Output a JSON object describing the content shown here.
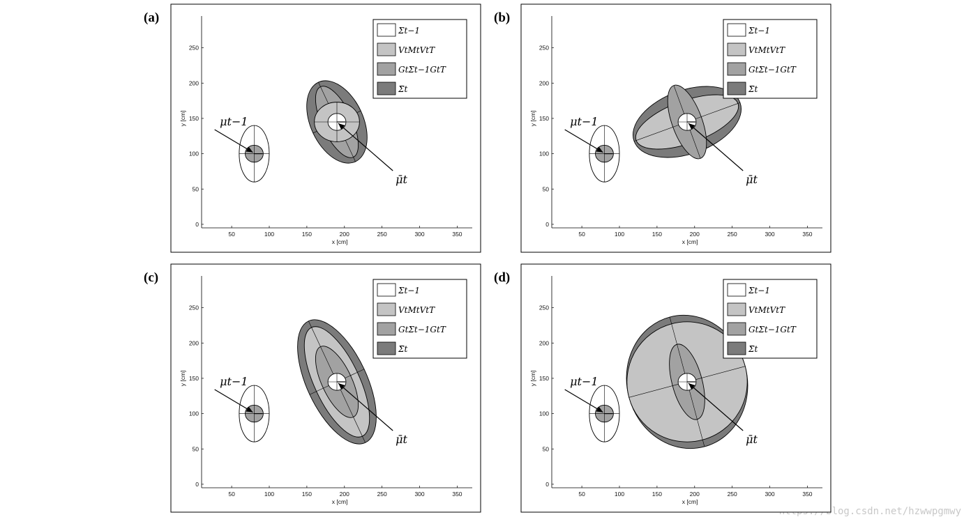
{
  "legend_entries": [
    "Σt−1",
    "VtMtVtT",
    "GtΣt−1GtT",
    "Σ̄t"
  ],
  "colors": {
    "sigma_prev": "#ffffff",
    "motion_noise": "#c4c4c4",
    "propagated": "#a2a2a2",
    "sigma_bar": "#7b7b7b",
    "frame": "#000000"
  },
  "watermark": "https://blog.csdn.net/hzwwpgmwy",
  "chart_data": [
    {
      "panel": "(a)",
      "type": "scatter",
      "xlabel": "x [cm]",
      "ylabel": "y [cm]",
      "xlim": [
        10,
        370
      ],
      "ylim": [
        -5,
        295
      ],
      "xticks": [
        50,
        100,
        150,
        200,
        250,
        300,
        350
      ],
      "yticks": [
        0,
        50,
        100,
        150,
        200,
        250
      ],
      "legend": "top-right",
      "mu_prev_label": "μt−1",
      "mu_bar_label": "μ̄t",
      "mu_prev": [
        80,
        100
      ],
      "mu_bar": [
        190,
        145
      ],
      "ellipses": [
        {
          "name": "Σt−1",
          "center": [
            80,
            100
          ],
          "rx": 20,
          "ry": 40,
          "angle": 0
        },
        {
          "name": "Σ̄t",
          "center": [
            190,
            145
          ],
          "rx": 35,
          "ry": 62,
          "angle": -25
        },
        {
          "name": "GtΣt−1GtT",
          "center": [
            190,
            145
          ],
          "rx": 20,
          "ry": 55,
          "angle": -25
        },
        {
          "name": "VtMtVtT",
          "center": [
            190,
            145
          ],
          "rx": 30,
          "ry": 28,
          "angle": 0
        },
        {
          "name": "Σt−1 propagated (inner)",
          "center": [
            190,
            145
          ],
          "rx": 12,
          "ry": 12,
          "angle": 0
        },
        {
          "name": "Σt−1 (inner)",
          "center": [
            80,
            100
          ],
          "rx": 12,
          "ry": 12,
          "angle": 0
        }
      ]
    },
    {
      "panel": "(b)",
      "type": "scatter",
      "xlabel": "x [cm]",
      "ylabel": "y [cm]",
      "xlim": [
        10,
        370
      ],
      "ylim": [
        -5,
        295
      ],
      "xticks": [
        50,
        100,
        150,
        200,
        250,
        300,
        350
      ],
      "yticks": [
        0,
        50,
        100,
        150,
        200,
        250
      ],
      "legend": "top-right",
      "mu_prev_label": "μt−1",
      "mu_bar_label": "μ̄t",
      "mu_prev": [
        80,
        100
      ],
      "mu_bar": [
        190,
        145
      ],
      "ellipses": [
        {
          "name": "Σt−1",
          "center": [
            80,
            100
          ],
          "rx": 20,
          "ry": 40,
          "angle": 0
        },
        {
          "name": "Σ̄t",
          "center": [
            190,
            145
          ],
          "rx": 75,
          "ry": 45,
          "angle": -20
        },
        {
          "name": "VtMtVtT",
          "center": [
            190,
            145
          ],
          "rx": 72,
          "ry": 30,
          "angle": -20
        },
        {
          "name": "GtΣt−1GtT",
          "center": [
            190,
            145
          ],
          "rx": 20,
          "ry": 55,
          "angle": -20
        },
        {
          "name": "Σt−1 propagated (inner)",
          "center": [
            190,
            145
          ],
          "rx": 12,
          "ry": 12,
          "angle": 0
        },
        {
          "name": "Σt−1 (inner)",
          "center": [
            80,
            100
          ],
          "rx": 12,
          "ry": 12,
          "angle": 0
        }
      ]
    },
    {
      "panel": "(c)",
      "type": "scatter",
      "xlabel": "x [cm]",
      "ylabel": "y [cm]",
      "xlim": [
        10,
        370
      ],
      "ylim": [
        -5,
        295
      ],
      "xticks": [
        50,
        100,
        150,
        200,
        250,
        300,
        350
      ],
      "yticks": [
        0,
        50,
        100,
        150,
        200,
        250
      ],
      "legend": "top-right",
      "mu_prev_label": "μt−1",
      "mu_bar_label": "μ̄t",
      "mu_prev": [
        80,
        100
      ],
      "mu_bar": [
        190,
        145
      ],
      "ellipses": [
        {
          "name": "Σt−1",
          "center": [
            80,
            100
          ],
          "rx": 20,
          "ry": 40,
          "angle": 0
        },
        {
          "name": "Σ̄t",
          "center": [
            190,
            145
          ],
          "rx": 40,
          "ry": 95,
          "angle": -25
        },
        {
          "name": "VtMtVtT",
          "center": [
            190,
            145
          ],
          "rx": 30,
          "ry": 85,
          "angle": -25
        },
        {
          "name": "GtΣt−1GtT",
          "center": [
            190,
            145
          ],
          "rx": 20,
          "ry": 55,
          "angle": -25
        },
        {
          "name": "Σt−1 propagated (inner)",
          "center": [
            190,
            145
          ],
          "rx": 12,
          "ry": 12,
          "angle": 0
        },
        {
          "name": "Σt−1 (inner)",
          "center": [
            80,
            100
          ],
          "rx": 12,
          "ry": 12,
          "angle": 0
        }
      ]
    },
    {
      "panel": "(d)",
      "type": "scatter",
      "xlabel": "x [cm]",
      "ylabel": "y [cm]",
      "xlim": [
        10,
        370
      ],
      "ylim": [
        -5,
        295
      ],
      "xticks": [
        50,
        100,
        150,
        200,
        250,
        300,
        350
      ],
      "yticks": [
        0,
        50,
        100,
        150,
        200,
        250
      ],
      "legend": "top-right",
      "mu_prev_label": "μt−1",
      "mu_bar_label": "μ̄t",
      "mu_prev": [
        80,
        100
      ],
      "mu_bar": [
        190,
        145
      ],
      "ellipses": [
        {
          "name": "Σt−1",
          "center": [
            80,
            100
          ],
          "rx": 20,
          "ry": 40,
          "angle": 0
        },
        {
          "name": "Σ̄t",
          "center": [
            190,
            145
          ],
          "rx": 80,
          "ry": 95,
          "angle": -15
        },
        {
          "name": "VtMtVtT",
          "center": [
            190,
            145
          ],
          "rx": 80,
          "ry": 85,
          "angle": -15
        },
        {
          "name": "GtΣt−1GtT",
          "center": [
            190,
            145
          ],
          "rx": 20,
          "ry": 55,
          "angle": -15
        },
        {
          "name": "Σt−1 propagated (inner)",
          "center": [
            190,
            145
          ],
          "rx": 12,
          "ry": 12,
          "angle": 0
        },
        {
          "name": "Σt−1 (inner)",
          "center": [
            80,
            100
          ],
          "rx": 12,
          "ry": 12,
          "angle": 0
        }
      ]
    }
  ]
}
